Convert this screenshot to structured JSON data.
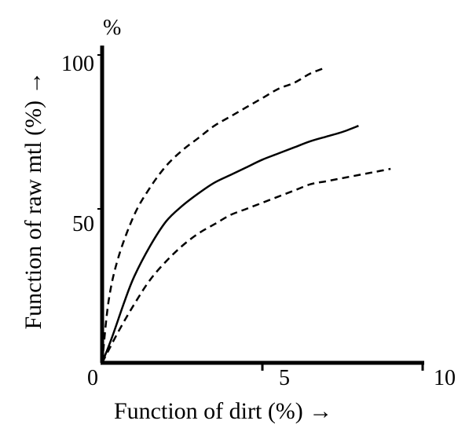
{
  "chart_data": {
    "type": "line",
    "title": "",
    "xlabel": "Function of dirt (%) →",
    "ylabel": "Function of raw mtl (%) →",
    "y_unit_label": "%",
    "xlim": [
      0,
      10
    ],
    "ylim": [
      0,
      100
    ],
    "x_ticks": [
      {
        "value": 0,
        "label": "0"
      },
      {
        "value": 5,
        "label": "5"
      },
      {
        "value": 10,
        "label": "10"
      }
    ],
    "y_ticks": [
      {
        "value": 50,
        "label": "50"
      },
      {
        "value": 100,
        "label": "100"
      }
    ],
    "grid": false,
    "legend": "none",
    "series": [
      {
        "style": "dashed",
        "x": [
          0,
          0.2,
          0.5,
          1.0,
          1.5,
          2.0,
          2.5,
          3.0,
          3.5,
          4.0,
          4.5,
          5.0,
          5.5,
          6.0,
          6.5,
          7.0
        ],
        "y": [
          0,
          20,
          34,
          48,
          57,
          64,
          69,
          73,
          77,
          80,
          83,
          86,
          89,
          91,
          94,
          96
        ]
      },
      {
        "style": "solid",
        "x": [
          0,
          0.3,
          0.7,
          1.0,
          1.5,
          2.0,
          2.5,
          3.0,
          3.5,
          4.0,
          4.5,
          5.0,
          5.5,
          6.0,
          6.5,
          7.0,
          7.5,
          8.0
        ],
        "y": [
          0,
          8,
          20,
          28,
          38,
          46,
          51,
          55,
          58.5,
          61,
          63.5,
          66,
          68,
          70,
          72,
          73.5,
          75,
          77
        ]
      },
      {
        "style": "dashed",
        "x": [
          0,
          0.5,
          1.0,
          1.5,
          2.0,
          2.5,
          3.0,
          3.5,
          4.0,
          4.5,
          5.0,
          5.5,
          6.0,
          6.5,
          7.0,
          7.5,
          8.0,
          8.5,
          9.0
        ],
        "y": [
          0,
          10,
          19,
          27,
          33,
          38,
          42,
          45,
          48,
          50,
          52,
          54,
          56,
          58,
          59,
          60,
          61,
          62,
          63
        ]
      }
    ]
  }
}
